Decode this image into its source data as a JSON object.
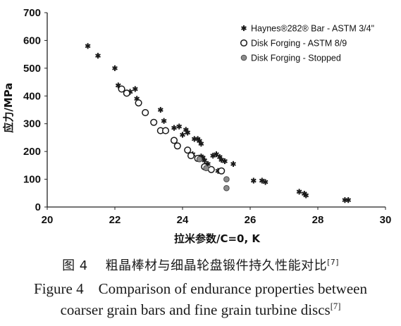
{
  "chart_data": {
    "type": "scatter",
    "title": "",
    "xlabel": "拉米参数/C=0, K",
    "ylabel": "应力/MPa",
    "xlim": [
      20,
      30
    ],
    "ylim": [
      0,
      700
    ],
    "xticks": [
      "20",
      "22",
      "24",
      "26",
      "28",
      "30"
    ],
    "yticks": [
      "0",
      "100",
      "200",
      "300",
      "400",
      "500",
      "600",
      "700"
    ],
    "grid": false,
    "legend_position": "top-right",
    "series": [
      {
        "name": "Haynes®282® Bar - ASTM 3/4\"",
        "marker": "asterisk",
        "color": "#1a1a1a",
        "points": [
          [
            21.2,
            580
          ],
          [
            21.5,
            545
          ],
          [
            22.0,
            500
          ],
          [
            22.1,
            438
          ],
          [
            22.45,
            415
          ],
          [
            22.6,
            425
          ],
          [
            22.65,
            390
          ],
          [
            23.35,
            350
          ],
          [
            23.45,
            310
          ],
          [
            23.75,
            285
          ],
          [
            23.9,
            290
          ],
          [
            24.1,
            278
          ],
          [
            24.0,
            260
          ],
          [
            24.15,
            268
          ],
          [
            24.35,
            245
          ],
          [
            24.45,
            245
          ],
          [
            24.5,
            238
          ],
          [
            24.55,
            228
          ],
          [
            24.3,
            190
          ],
          [
            24.55,
            182
          ],
          [
            24.6,
            178
          ],
          [
            24.65,
            168
          ],
          [
            24.75,
            155
          ],
          [
            24.9,
            185
          ],
          [
            25.0,
            190
          ],
          [
            25.1,
            180
          ],
          [
            25.15,
            170
          ],
          [
            25.25,
            165
          ],
          [
            25.5,
            155
          ],
          [
            25.05,
            130
          ],
          [
            26.1,
            95
          ],
          [
            26.35,
            95
          ],
          [
            26.45,
            90
          ],
          [
            27.45,
            55
          ],
          [
            27.6,
            48
          ],
          [
            27.65,
            42
          ],
          [
            28.8,
            25
          ],
          [
            28.9,
            25
          ]
        ]
      },
      {
        "name": "Disk Forging - ASTM 8/9",
        "marker": "open-circle",
        "color": "#1a1a1a",
        "points": [
          [
            22.2,
            425
          ],
          [
            22.35,
            410
          ],
          [
            22.7,
            375
          ],
          [
            22.9,
            340
          ],
          [
            23.15,
            305
          ],
          [
            23.35,
            275
          ],
          [
            23.5,
            275
          ],
          [
            23.75,
            240
          ],
          [
            23.85,
            220
          ],
          [
            24.15,
            205
          ],
          [
            24.25,
            185
          ],
          [
            24.45,
            175
          ],
          [
            24.65,
            145
          ],
          [
            24.85,
            135
          ],
          [
            25.15,
            130
          ]
        ]
      },
      {
        "name": "Disk Forging - Stopped",
        "marker": "filled-circle",
        "color": "#8c8c8c",
        "points": [
          [
            24.5,
            172
          ],
          [
            24.7,
            140
          ],
          [
            25.3,
            100
          ],
          [
            25.3,
            68
          ]
        ]
      }
    ]
  },
  "caption": {
    "cn_label": "图 4",
    "cn_text": "粗晶棒材与细晶轮盘锻件持久性能对比",
    "cn_ref": "[7]",
    "en_line1": "Figure 4    Comparison of endurance properties between",
    "en_line2": "coarser grain bars and fine grain turbine discs",
    "en_ref": "[7]"
  }
}
